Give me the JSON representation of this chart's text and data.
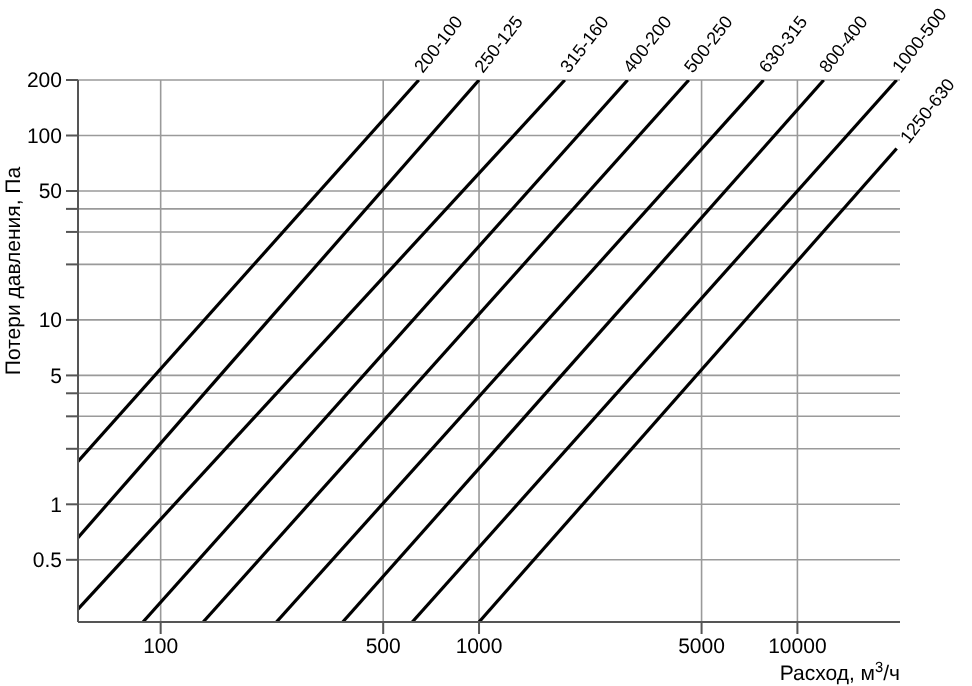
{
  "chart_data": {
    "type": "line",
    "xlabel": "Расход, м$^{3}$/ч",
    "ylabel": "Потери давления, Па",
    "log": "xy",
    "grid": true,
    "legend": false,
    "marker": "none",
    "line_style": "solid",
    "xlim": [
      55,
      21000
    ],
    "xticks": [
      100,
      500,
      1000,
      5000,
      10000
    ],
    "ylim": [
      0.23,
      200
    ],
    "yticks": [
      {
        "value": 0.5,
        "label": "0.5"
      },
      1,
      {
        "value": 2,
        "label": null
      },
      {
        "value": 3,
        "label": null
      },
      {
        "value": 4,
        "label": null
      },
      5,
      10,
      {
        "value": 20,
        "label": null
      },
      {
        "value": 30,
        "label": null
      },
      {
        "value": 40,
        "label": null
      },
      50,
      100,
      200
    ],
    "series": [
      {
        "name": "200-100",
        "color": "#000000",
        "x": [
          55,
          647
        ],
        "values": [
          1.71,
          200
        ]
      },
      {
        "name": "250-125",
        "color": "#000000",
        "x": [
          55,
          1000
        ],
        "values": [
          0.66,
          200
        ]
      },
      {
        "name": "315-160",
        "color": "#000000",
        "x": [
          55,
          1860
        ],
        "values": [
          0.27,
          200
        ]
      },
      {
        "name": "400-200",
        "color": "#000000",
        "x": [
          88,
          2930
        ],
        "values": [
          0.23,
          200
        ]
      },
      {
        "name": "500-250",
        "color": "#000000",
        "x": [
          136,
          4560
        ],
        "values": [
          0.23,
          200
        ]
      },
      {
        "name": "630-315",
        "color": "#000000",
        "x": [
          231,
          7830
        ],
        "values": [
          0.23,
          200
        ]
      },
      {
        "name": "800-400",
        "color": "#000000",
        "x": [
          373,
          12100
        ],
        "values": [
          0.23,
          200
        ]
      },
      {
        "name": "1000-500",
        "color": "#000000",
        "x": [
          617,
          20500
        ],
        "values": [
          0.23,
          200
        ]
      },
      {
        "name": "1250-630",
        "color": "#000000",
        "x": [
          1000,
          20500
        ],
        "values": [
          0.23,
          85
        ]
      }
    ]
  }
}
